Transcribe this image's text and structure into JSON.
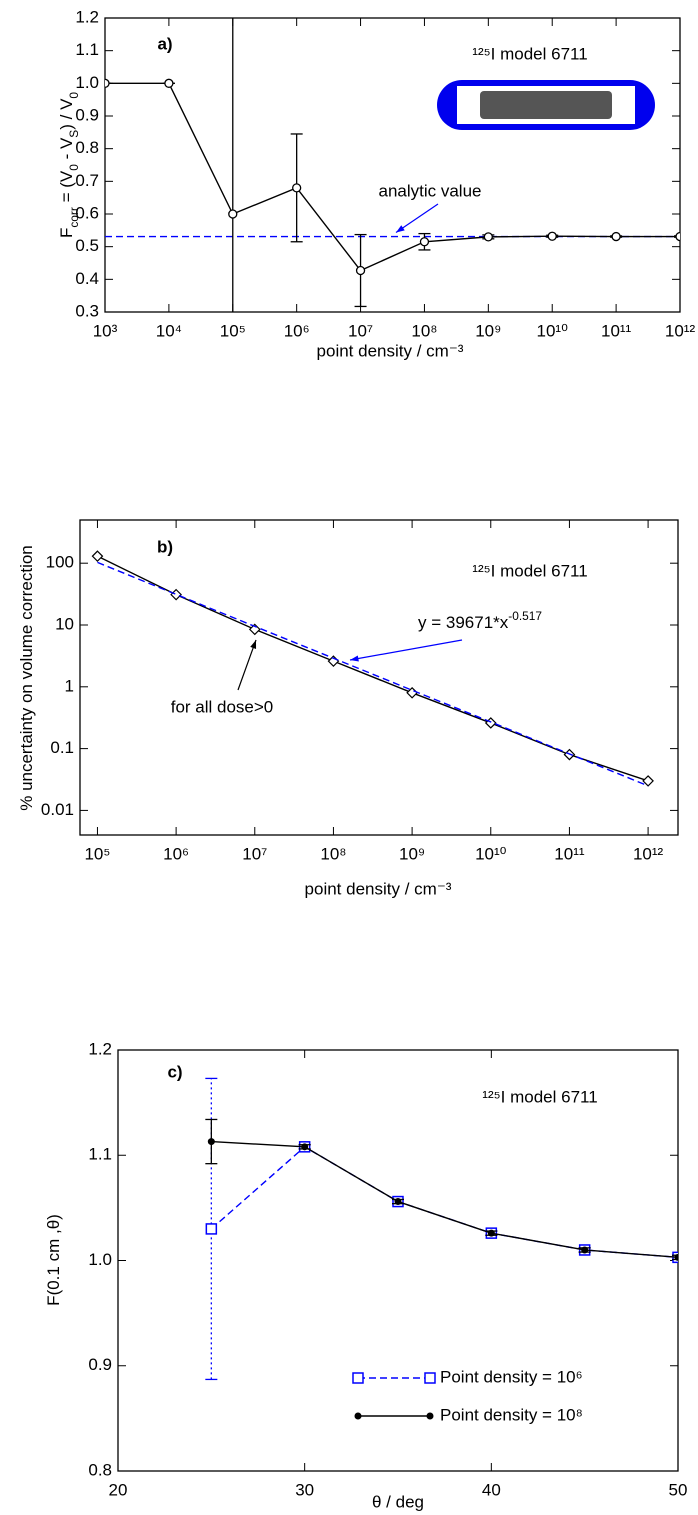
{
  "chart_data": [
    {
      "type": "line",
      "title": "a)",
      "xscale": "log",
      "yscale": "linear",
      "xlabel": "point density / cm⁻³",
      "ylabel": [
        {
          "text": "F"
        },
        {
          "text": "corr",
          "sub": true
        },
        {
          "text": " =  (V"
        },
        {
          "text": "0",
          "sub": true
        },
        {
          "text": " - V"
        },
        {
          "text": "S",
          "sub": true
        },
        {
          "text": ") / V"
        },
        {
          "text": "0",
          "sub": true
        }
      ],
      "x": [
        1000,
        10000,
        100000,
        1000000,
        10000000,
        100000000,
        1000000000,
        10000000000,
        100000000000,
        1000000000000
      ],
      "xlim": [
        1000,
        1000000000000
      ],
      "ylim": [
        0.3,
        1.2
      ],
      "xticks": [
        {
          "value": 1000,
          "label": "10³"
        },
        {
          "value": 10000,
          "label": "10⁴"
        },
        {
          "value": 100000,
          "label": "10⁵"
        },
        {
          "value": 1000000,
          "label": "10⁶"
        },
        {
          "value": 10000000,
          "label": "10⁷"
        },
        {
          "value": 100000000,
          "label": "10⁸"
        },
        {
          "value": 1000000000,
          "label": "10⁹"
        },
        {
          "value": 10000000000,
          "label": "10¹⁰"
        },
        {
          "value": 100000000000,
          "label": "10¹¹"
        },
        {
          "value": 1000000000000,
          "label": "10¹²"
        }
      ],
      "yticks": [
        0.3,
        0.4,
        0.5,
        0.6,
        0.7,
        0.8,
        0.9,
        {
          "value": 1,
          "label": "1.0"
        },
        1.1,
        1.2
      ],
      "series": [
        {
          "color": "#000000",
          "line": "solid",
          "marker": "circle",
          "values": [
            1.0,
            1.0,
            0.6,
            0.68,
            0.427,
            0.515,
            0.53,
            0.532,
            0.531,
            0.531
          ],
          "errors": [
            0,
            0,
            0.65,
            0.165,
            0.11,
            0.025,
            0.006,
            0.003,
            0.002,
            0.002
          ]
        }
      ],
      "reference_line": {
        "value": 0.531,
        "color": "#0000ff",
        "style": "dashed",
        "label": "analytic value"
      },
      "annotations": [
        {
          "text": "¹²⁵I  model 6711",
          "color": "#000000"
        }
      ]
    },
    {
      "type": "line",
      "title": "b)",
      "xscale": "log",
      "yscale": "log",
      "xlabel": "point density / cm⁻³",
      "ylabel": [
        {
          "text": "% uncertainty on volume correction"
        }
      ],
      "x": [
        100000,
        1000000,
        10000000,
        100000000,
        1000000000,
        10000000000,
        100000000000,
        1000000000000
      ],
      "xlim": [
        60000,
        2400000000000
      ],
      "ylim": [
        0.004,
        500
      ],
      "xticks": [
        {
          "value": 100000,
          "label": "10⁵"
        },
        {
          "value": 1000000,
          "label": "10⁶"
        },
        {
          "value": 10000000,
          "label": "10⁷"
        },
        {
          "value": 100000000,
          "label": "10⁸"
        },
        {
          "value": 1000000000,
          "label": "10⁹"
        },
        {
          "value": 10000000000,
          "label": "10¹⁰"
        },
        {
          "value": 100000000000,
          "label": "10¹¹"
        },
        {
          "value": 1000000000000,
          "label": "10¹²"
        }
      ],
      "yticks": [
        0.01,
        0.1,
        1,
        10,
        100
      ],
      "series": [
        {
          "color": "#000000",
          "line": "solid",
          "marker": "diamond",
          "values": [
            130,
            31,
            8.5,
            2.6,
            0.8,
            0.26,
            0.08,
            0.03
          ]
        },
        {
          "color": "#0000ff",
          "line": "dashed",
          "marker": "none",
          "values": [
            103,
            31.3,
            9.5,
            2.9,
            0.88,
            0.27,
            0.082,
            0.025
          ]
        }
      ],
      "annotations": [
        {
          "text": "¹²⁵I model 6711",
          "color": "#000000"
        },
        {
          "parts": [
            {
              "text": "y = 39671*x"
            },
            {
              "text": "-0.517",
              "sup": true
            }
          ],
          "color": "#0000ff"
        },
        {
          "text": "for all dose>0",
          "color": "#000000"
        }
      ]
    },
    {
      "type": "line",
      "title": "c)",
      "xscale": "linear",
      "yscale": "linear",
      "xlabel": "θ / deg",
      "ylabel": [
        {
          "text": "F(0.1 cm ,θ)"
        }
      ],
      "x": [
        25,
        30,
        35,
        40,
        45,
        50
      ],
      "xlim": [
        20,
        50
      ],
      "ylim": [
        0.8,
        1.2
      ],
      "xticks": [
        20,
        30,
        40,
        50
      ],
      "yticks": [
        0.8,
        0.9,
        {
          "value": 1,
          "label": "1.0"
        },
        1.1,
        1.2
      ],
      "legend": "lower right",
      "series": [
        {
          "name": "Point density = 10⁶",
          "color": "#0000ff",
          "line": "dashed",
          "marker": "square",
          "error_style": "dotted",
          "values": [
            1.03,
            1.108,
            1.056,
            1.026,
            1.01,
            1.003
          ],
          "errors": [
            0.143,
            0.002,
            0.002,
            0.002,
            0.002,
            0.002
          ]
        },
        {
          "name": "Point density = 10⁸",
          "color": "#000000",
          "line": "solid",
          "marker": "dot",
          "values": [
            1.113,
            1.108,
            1.056,
            1.026,
            1.01,
            1.003
          ],
          "errors": [
            0.021,
            0.002,
            0.002,
            0.002,
            0.002,
            0.002
          ]
        }
      ],
      "annotations": [
        {
          "text": "¹²⁵I  model 6711",
          "color": "#000000"
        }
      ]
    }
  ]
}
